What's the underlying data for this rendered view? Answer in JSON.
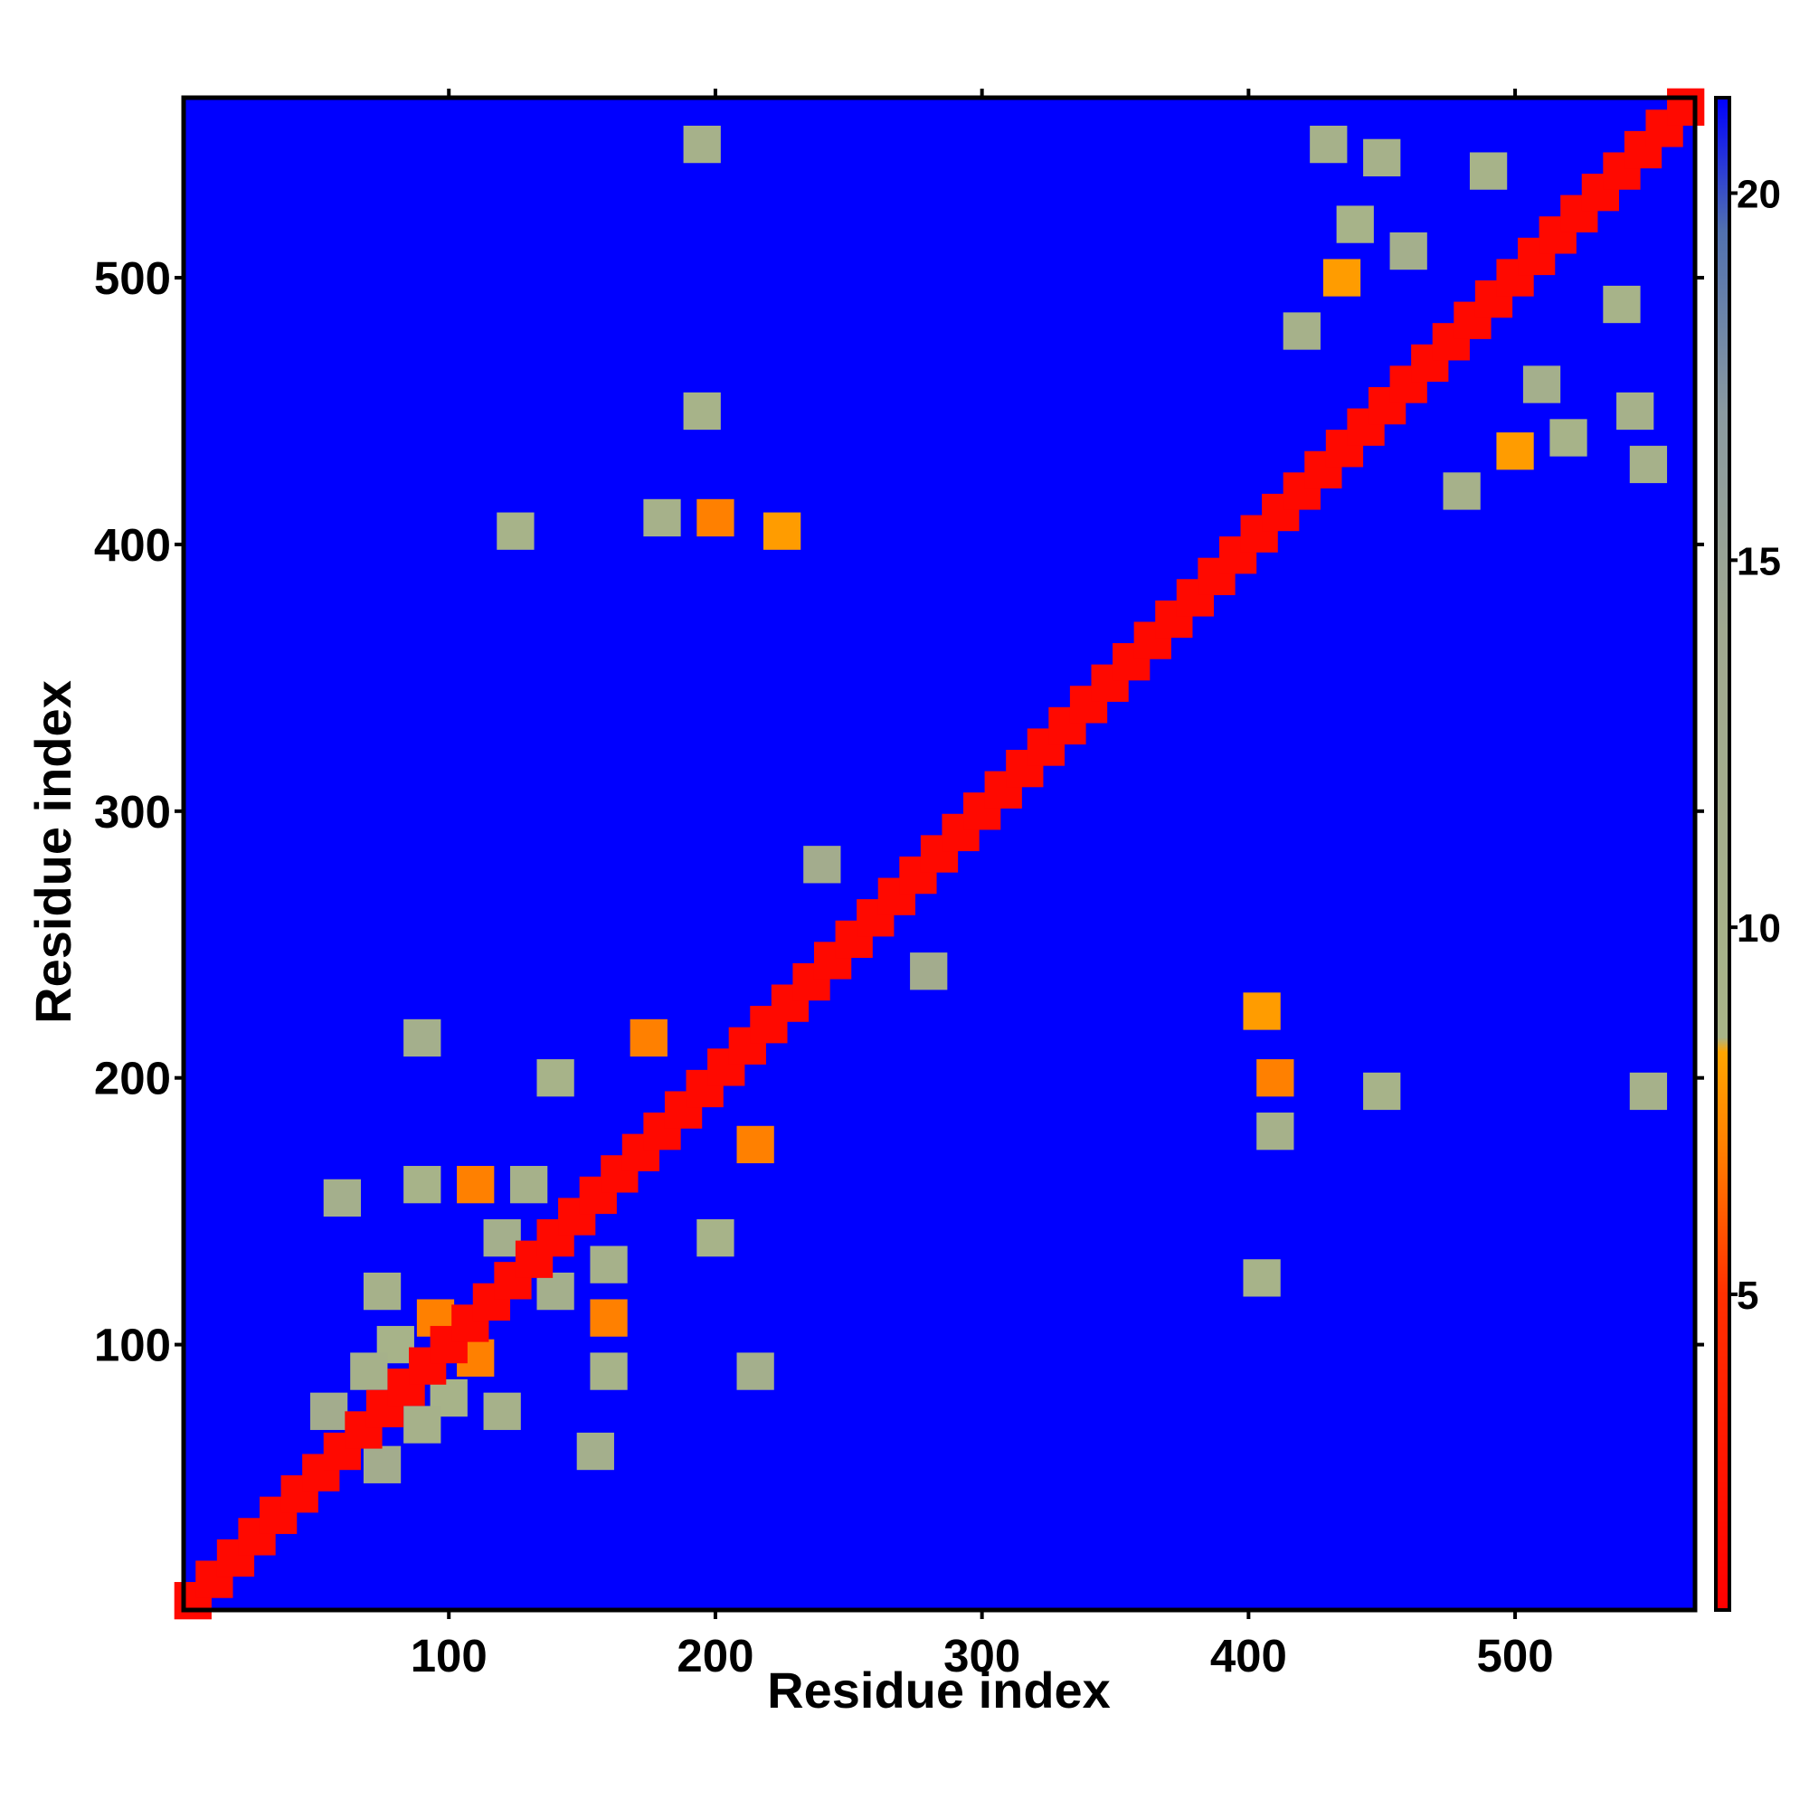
{
  "chart_data": {
    "type": "heatmap",
    "xlabel": "Residue index",
    "ylabel": "Residue index",
    "xlim": [
      0.5,
      567.5
    ],
    "ylim": [
      0.5,
      567.5
    ],
    "xticks": [
      100,
      200,
      300,
      400,
      500
    ],
    "yticks": [
      100,
      200,
      300,
      400,
      500
    ],
    "zlim": [
      0.7,
      21.3
    ],
    "zticks": [
      5,
      10,
      15,
      20
    ],
    "colorscale": [
      {
        "value": 0.7,
        "color": "#ff0000"
      },
      {
        "value": 5,
        "color": "#ff3000"
      },
      {
        "value": 7,
        "color": "#ff8000"
      },
      {
        "value": 8.3,
        "color": "#ffa500"
      },
      {
        "value": 8.5,
        "color": "#a8b488"
      },
      {
        "value": 14,
        "color": "#a0a890"
      },
      {
        "value": 17,
        "color": "#8a9aa0"
      },
      {
        "value": 19.5,
        "color": "#5070b0"
      },
      {
        "value": 21.3,
        "color": "#0000ff"
      }
    ],
    "x": [
      80,
      100,
      95,
      110,
      75,
      120,
      110,
      160,
      130,
      160,
      60,
      155,
      90,
      160,
      140,
      200,
      90,
      215,
      240,
      280,
      200,
      410,
      195,
      450,
      125,
      405,
      195,
      550,
      180,
      410,
      225,
      405,
      440,
      520,
      420,
      480,
      435,
      500,
      450,
      545,
      490,
      540,
      460,
      510,
      430,
      550,
      175,
      215,
      70,
      90,
      120,
      140,
      55,
      75,
      4,
      12,
      20,
      28,
      36,
      44,
      52,
      60,
      68,
      76,
      84,
      92,
      100,
      108,
      116,
      124,
      132,
      140,
      148,
      156,
      164,
      172,
      180,
      188,
      196,
      204,
      212,
      220,
      228,
      236,
      244,
      252,
      260,
      268,
      276,
      284,
      292,
      300,
      308,
      316,
      324,
      332,
      340,
      348,
      356,
      364,
      372,
      380,
      388,
      396,
      404,
      412,
      420,
      428,
      436,
      444,
      452,
      460,
      468,
      476,
      484,
      492,
      500,
      508,
      516,
      524,
      532,
      540,
      548,
      556,
      564
    ],
    "y": [
      100,
      80,
      110,
      95,
      120,
      75,
      160,
      110,
      160,
      130,
      155,
      60,
      160,
      90,
      200,
      140,
      215,
      90,
      280,
      240,
      410,
      200,
      450,
      195,
      405,
      125,
      550,
      195,
      410,
      180,
      405,
      225,
      520,
      440,
      480,
      420,
      500,
      435,
      545,
      450,
      540,
      490,
      510,
      460,
      550,
      430,
      215,
      175,
      90,
      70,
      140,
      120,
      75,
      55,
      4,
      12,
      20,
      28,
      36,
      44,
      52,
      60,
      68,
      76,
      84,
      92,
      100,
      108,
      116,
      124,
      132,
      140,
      148,
      156,
      164,
      172,
      180,
      188,
      196,
      204,
      212,
      220,
      228,
      236,
      244,
      252,
      260,
      268,
      276,
      284,
      292,
      300,
      308,
      316,
      324,
      332,
      340,
      348,
      356,
      364,
      372,
      380,
      388,
      396,
      404,
      412,
      420,
      428,
      436,
      444,
      452,
      460,
      468,
      476,
      484,
      492,
      500,
      508,
      516,
      524,
      532,
      540,
      548,
      556,
      564
    ],
    "values": [
      9,
      9,
      7,
      7,
      10,
      10,
      7,
      7,
      10,
      10,
      11,
      11,
      9,
      9,
      9,
      9,
      11,
      11,
      12,
      12,
      7,
      7,
      9,
      9,
      9,
      9,
      10,
      10,
      10,
      10,
      8,
      8,
      9,
      9,
      10,
      10,
      8,
      8,
      10,
      10,
      9,
      9,
      11,
      11,
      10,
      10,
      7,
      7,
      10,
      10,
      11,
      11,
      12,
      12,
      1.5,
      1.5,
      1.5,
      1.5,
      1.5,
      1.5,
      1.5,
      1.5,
      1.5,
      1.5,
      1.5,
      1.5,
      1.5,
      1.5,
      1.5,
      1.5,
      1.5,
      1.5,
      1.5,
      1.5,
      1.5,
      1.5,
      1.5,
      1.5,
      1.5,
      1.5,
      1.5,
      1.5,
      1.5,
      1.5,
      1.5,
      1.5,
      1.5,
      1.5,
      1.5,
      1.5,
      1.5,
      1.5,
      1.5,
      1.5,
      1.5,
      1.5,
      1.5,
      1.5,
      1.5,
      1.5,
      1.5,
      1.5,
      1.5,
      1.5,
      1.5,
      1.5,
      1.5,
      1.5,
      1.5,
      1.5,
      1.5,
      1.5,
      1.5,
      1.5,
      1.5,
      1.5,
      1.5,
      1.5,
      1.5,
      1.5,
      1.5,
      1.5,
      1.5,
      1.5,
      1.5
    ]
  }
}
